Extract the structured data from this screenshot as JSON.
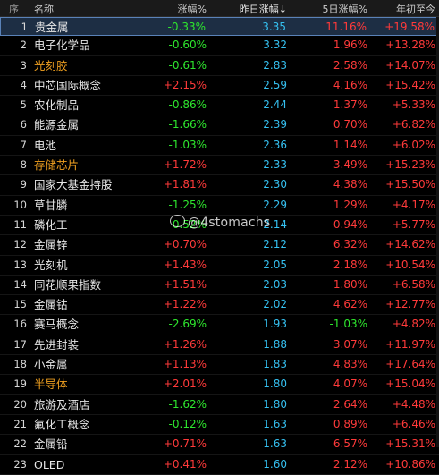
{
  "header": {
    "idx": "序",
    "name": "名称",
    "c1": "涨幅%",
    "c2": "昨日涨幅↓",
    "c3": "5日涨幅%",
    "c4": "年初至今"
  },
  "rows": [
    {
      "idx": "1",
      "name": "贵金属",
      "name_color": "white",
      "c1": "-0.33%",
      "c1_dir": "down",
      "c2": "3.35",
      "c3": "11.16%",
      "c4": "+19.58%"
    },
    {
      "idx": "2",
      "name": "电子化学品",
      "name_color": "white",
      "c1": "-0.60%",
      "c1_dir": "down",
      "c2": "3.32",
      "c3": "1.96%",
      "c4": "+13.28%"
    },
    {
      "idx": "3",
      "name": "光刻胶",
      "name_color": "orange",
      "c1": "-0.61%",
      "c1_dir": "down",
      "c2": "2.83",
      "c3": "2.58%",
      "c4": "+14.07%"
    },
    {
      "idx": "4",
      "name": "中芯国际概念",
      "name_color": "white",
      "c1": "+2.15%",
      "c1_dir": "up",
      "c2": "2.59",
      "c3": "4.16%",
      "c4": "+15.42%"
    },
    {
      "idx": "5",
      "name": "农化制品",
      "name_color": "white",
      "c1": "-0.86%",
      "c1_dir": "down",
      "c2": "2.44",
      "c3": "1.37%",
      "c4": "+5.33%"
    },
    {
      "idx": "6",
      "name": "能源金属",
      "name_color": "white",
      "c1": "-1.66%",
      "c1_dir": "down",
      "c2": "2.39",
      "c3": "0.70%",
      "c4": "+6.82%"
    },
    {
      "idx": "7",
      "name": "电池",
      "name_color": "white",
      "c1": "-1.03%",
      "c1_dir": "down",
      "c2": "2.36",
      "c3": "1.14%",
      "c4": "+6.02%"
    },
    {
      "idx": "8",
      "name": "存储芯片",
      "name_color": "orange",
      "c1": "+1.72%",
      "c1_dir": "up",
      "c2": "2.33",
      "c3": "3.49%",
      "c4": "+15.23%"
    },
    {
      "idx": "9",
      "name": "国家大基金持股",
      "name_color": "white",
      "c1": "+1.81%",
      "c1_dir": "up",
      "c2": "2.30",
      "c3": "4.38%",
      "c4": "+15.50%"
    },
    {
      "idx": "10",
      "name": "草甘膦",
      "name_color": "white",
      "c1": "-1.25%",
      "c1_dir": "down",
      "c2": "2.29",
      "c3": "1.29%",
      "c4": "+4.17%"
    },
    {
      "idx": "11",
      "name": "磷化工",
      "name_color": "white",
      "c1": "-0.52%",
      "c1_dir": "down",
      "c2": "2.14",
      "c3": "0.94%",
      "c4": "+5.77%"
    },
    {
      "idx": "12",
      "name": "金属锌",
      "name_color": "white",
      "c1": "+0.70%",
      "c1_dir": "up",
      "c2": "2.12",
      "c3": "6.32%",
      "c4": "+14.62%"
    },
    {
      "idx": "13",
      "name": "光刻机",
      "name_color": "white",
      "c1": "+1.43%",
      "c1_dir": "up",
      "c2": "2.05",
      "c3": "2.18%",
      "c4": "+10.54%"
    },
    {
      "idx": "14",
      "name": "同花顺果指数",
      "name_color": "white",
      "c1": "+1.51%",
      "c1_dir": "up",
      "c2": "2.03",
      "c3": "1.80%",
      "c4": "+6.58%"
    },
    {
      "idx": "15",
      "name": "金属钴",
      "name_color": "white",
      "c1": "+1.22%",
      "c1_dir": "up",
      "c2": "2.02",
      "c3": "4.62%",
      "c4": "+12.77%"
    },
    {
      "idx": "16",
      "name": "赛马概念",
      "name_color": "white",
      "c1": "-2.69%",
      "c1_dir": "down",
      "c2": "1.93",
      "c3": "-1.03%",
      "c3_dir": "down",
      "c4": "+4.82%"
    },
    {
      "idx": "17",
      "name": "先进封装",
      "name_color": "white",
      "c1": "+1.26%",
      "c1_dir": "up",
      "c2": "1.88",
      "c3": "3.07%",
      "c4": "+11.97%"
    },
    {
      "idx": "18",
      "name": "小金属",
      "name_color": "white",
      "c1": "+1.13%",
      "c1_dir": "up",
      "c2": "1.83",
      "c3": "4.83%",
      "c4": "+17.64%"
    },
    {
      "idx": "19",
      "name": "半导体",
      "name_color": "orange",
      "c1": "+2.01%",
      "c1_dir": "up",
      "c2": "1.80",
      "c3": "4.07%",
      "c4": "+15.04%"
    },
    {
      "idx": "20",
      "name": "旅游及酒店",
      "name_color": "white",
      "c1": "-1.62%",
      "c1_dir": "down",
      "c2": "1.80",
      "c3": "2.64%",
      "c4": "+4.48%"
    },
    {
      "idx": "21",
      "name": "氟化工概念",
      "name_color": "white",
      "c1": "-0.12%",
      "c1_dir": "down",
      "c2": "1.63",
      "c3": "0.89%",
      "c4": "+6.46%"
    },
    {
      "idx": "22",
      "name": "金属铅",
      "name_color": "white",
      "c1": "+0.71%",
      "c1_dir": "up",
      "c2": "1.63",
      "c3": "6.57%",
      "c4": "+15.31%"
    },
    {
      "idx": "23",
      "name": "OLED",
      "name_color": "white",
      "c1": "+0.41%",
      "c1_dir": "up",
      "c2": "1.60",
      "c3": "2.12%",
      "c4": "+10.86%"
    }
  ],
  "selected_row": 0,
  "watermark": "@4stomachs",
  "colors": {
    "up": "#ff3a3a",
    "down": "#2ee62e",
    "prev_change": "#35c0f0",
    "highlight_name": "#f0a020",
    "selected_bg": "#1d2e44"
  }
}
